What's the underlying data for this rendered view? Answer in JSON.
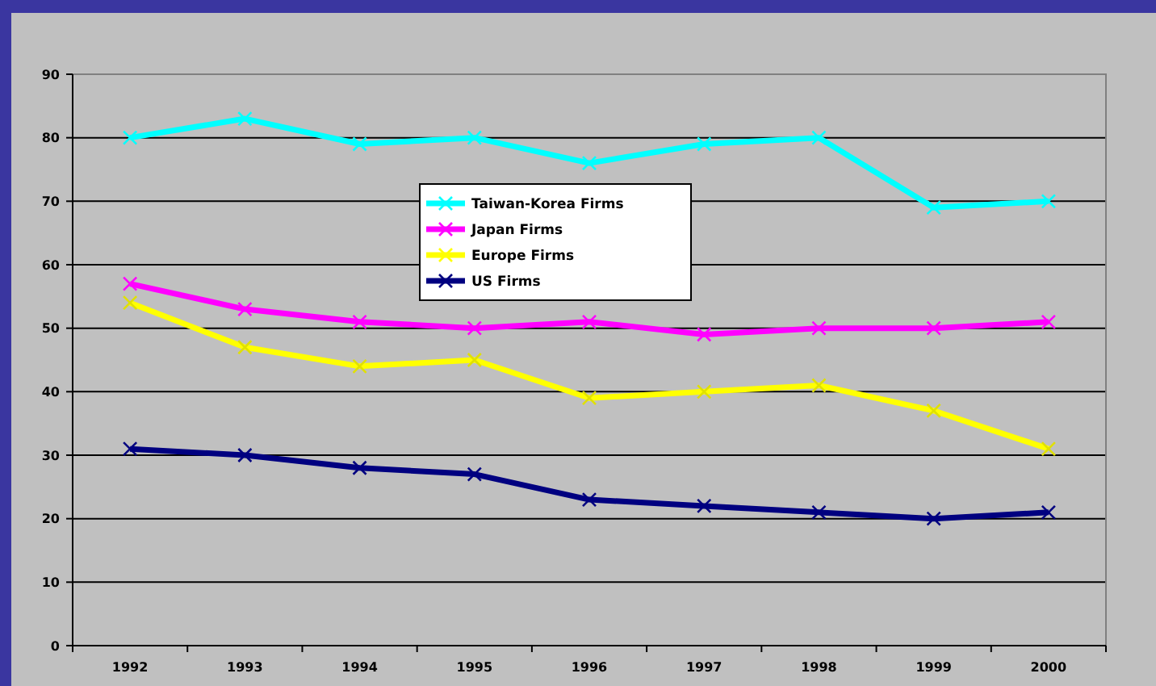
{
  "chart_data": {
    "type": "line",
    "categories": [
      "1992",
      "1993",
      "1994",
      "1995",
      "1996",
      "1997",
      "1998",
      "1999",
      "2000"
    ],
    "series": [
      {
        "name": "Taiwan-Korea Firms",
        "color": "#00ffff",
        "values": [
          80,
          83,
          79,
          80,
          76,
          79,
          80,
          69,
          70
        ]
      },
      {
        "name": "Japan Firms",
        "color": "#ff00ff",
        "values": [
          57,
          53,
          51,
          50,
          51,
          49,
          50,
          50,
          51
        ]
      },
      {
        "name": "Europe Firms",
        "color": "#ffff00",
        "values": [
          54,
          47,
          44,
          45,
          39,
          40,
          41,
          37,
          31
        ]
      },
      {
        "name": "US Firms",
        "color": "#000080",
        "values": [
          31,
          30,
          28,
          27,
          23,
          22,
          21,
          20,
          21
        ]
      }
    ],
    "ylim": [
      0,
      90
    ],
    "yticks": [
      0,
      10,
      20,
      30,
      40,
      50,
      60,
      70,
      80,
      90
    ],
    "grid": "y",
    "legend": "top",
    "marker": "cross",
    "line_style": "solid"
  }
}
